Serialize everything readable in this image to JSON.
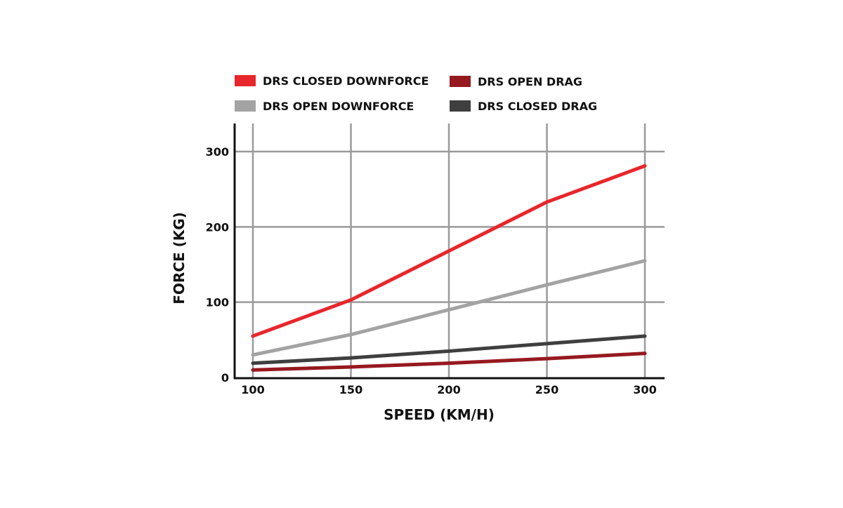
{
  "chart_data": {
    "type": "line",
    "title": "",
    "xlabel": "SPEED (KM/H)",
    "ylabel": "FORCE (KG)",
    "x": [
      100,
      150,
      200,
      250,
      300
    ],
    "xlim": [
      90,
      310
    ],
    "ylim": [
      0,
      335
    ],
    "x_ticks": [
      "100",
      "150",
      "200",
      "250",
      "300"
    ],
    "y_ticks": [
      "0",
      "100",
      "200",
      "300"
    ],
    "grid": true,
    "legend_position": "top",
    "series": [
      {
        "name": "DRS CLOSED DOWNFORCE",
        "color": "#e8262b",
        "values": [
          55,
          103,
          168,
          233,
          281
        ]
      },
      {
        "name": "DRS OPEN DOWNFORCE",
        "color": "#a3a3a3",
        "values": [
          30,
          57,
          90,
          123,
          155
        ]
      },
      {
        "name": "DRS OPEN DRAG",
        "color": "#96191f",
        "values": [
          10,
          14,
          19,
          25,
          32
        ]
      },
      {
        "name": "DRS CLOSED DRAG",
        "color": "#3f3f3f",
        "values": [
          19,
          26,
          35,
          45,
          55
        ]
      }
    ]
  }
}
